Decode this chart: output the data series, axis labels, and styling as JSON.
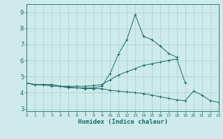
{
  "xlabel": "Humidex (Indice chaleur)",
  "background_color": "#ceeaea",
  "grid_color": "#aacfcf",
  "line_color": "#1a6b6b",
  "x_values": [
    0,
    1,
    2,
    3,
    4,
    5,
    6,
    7,
    8,
    9,
    10,
    11,
    12,
    13,
    14,
    15,
    16,
    17,
    18,
    19,
    20,
    21,
    22,
    23
  ],
  "series1": [
    4.6,
    4.5,
    4.5,
    4.5,
    4.4,
    4.3,
    4.3,
    4.3,
    4.3,
    4.4,
    5.2,
    6.4,
    7.3,
    8.85,
    7.5,
    7.3,
    6.9,
    6.45,
    6.2,
    null,
    null,
    null,
    null,
    null
  ],
  "series2": [
    4.6,
    4.5,
    4.5,
    4.5,
    4.4,
    4.4,
    4.4,
    4.4,
    4.45,
    4.5,
    4.8,
    5.1,
    5.3,
    5.5,
    5.7,
    5.8,
    5.9,
    6.0,
    6.1,
    4.6,
    null,
    null,
    null,
    null
  ],
  "series3": [
    4.6,
    4.5,
    4.5,
    4.4,
    4.4,
    4.35,
    4.3,
    4.25,
    4.25,
    4.25,
    4.15,
    4.1,
    4.05,
    4.0,
    3.95,
    3.85,
    3.75,
    3.65,
    3.55,
    3.5,
    4.1,
    3.85,
    3.5,
    3.4
  ],
  "ylim": [
    2.85,
    9.5
  ],
  "xlim": [
    0,
    23
  ],
  "yticks": [
    3,
    4,
    5,
    6,
    7,
    8,
    9
  ],
  "xticks": [
    0,
    1,
    2,
    3,
    4,
    5,
    6,
    7,
    8,
    9,
    10,
    11,
    12,
    13,
    14,
    15,
    16,
    17,
    18,
    19,
    20,
    21,
    22,
    23
  ]
}
